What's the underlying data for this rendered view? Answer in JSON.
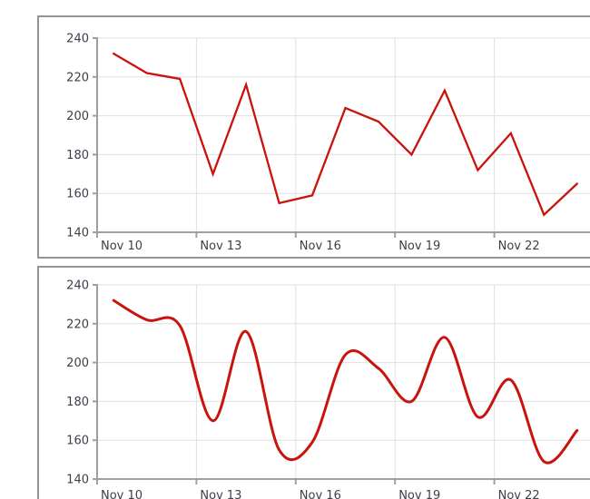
{
  "theme": {
    "background": "#ffffff",
    "panel_border": "#949494",
    "grid_color": "#e0e0e0",
    "axis_color": "#9f9f9f",
    "tick_color": "#9f9f9f",
    "label_color": "#3d4049",
    "line_color": "#c8140c"
  },
  "chart_data": [
    {
      "panel": "top",
      "type": "line",
      "interpolation": "linear",
      "title": "",
      "xlabel": "",
      "ylabel": "",
      "legend": "none",
      "grid": true,
      "x": [
        "Nov 10",
        "Nov 11",
        "Nov 12",
        "Nov 13",
        "Nov 14",
        "Nov 15",
        "Nov 16",
        "Nov 17",
        "Nov 18",
        "Nov 19",
        "Nov 20",
        "Nov 21",
        "Nov 22",
        "Nov 23",
        "Nov 24"
      ],
      "values": [
        232,
        222,
        219,
        170,
        216,
        155,
        159,
        204,
        197,
        180,
        213,
        172,
        191,
        149,
        165
      ],
      "x_axis_labels": [
        "Nov 10",
        "Nov 13",
        "Nov 16",
        "Nov 19",
        "Nov 22"
      ],
      "x_label_step": 3,
      "y_axis_labels": [
        "140",
        "160",
        "180",
        "200",
        "220",
        "240"
      ],
      "y_ticks": [
        140,
        160,
        180,
        200,
        220,
        240
      ],
      "ylim": [
        140,
        240
      ],
      "series_color": "#c8140c"
    },
    {
      "panel": "bottom",
      "type": "line",
      "interpolation": "spline",
      "title": "",
      "xlabel": "",
      "ylabel": "",
      "legend": "none",
      "grid": true,
      "x": [
        "Nov 10",
        "Nov 11",
        "Nov 12",
        "Nov 13",
        "Nov 14",
        "Nov 15",
        "Nov 16",
        "Nov 17",
        "Nov 18",
        "Nov 19",
        "Nov 20",
        "Nov 21",
        "Nov 22",
        "Nov 23",
        "Nov 24"
      ],
      "values": [
        232,
        222,
        219,
        170,
        216,
        155,
        159,
        204,
        197,
        180,
        213,
        172,
        191,
        149,
        165
      ],
      "x_axis_labels": [
        "Nov 10",
        "Nov 13",
        "Nov 16",
        "Nov 19",
        "Nov 22"
      ],
      "x_label_step": 3,
      "y_axis_labels": [
        "140",
        "160",
        "180",
        "200",
        "220",
        "240"
      ],
      "y_ticks": [
        140,
        160,
        180,
        200,
        220,
        240
      ],
      "ylim": [
        140,
        240
      ],
      "series_color": "#c8140c"
    }
  ]
}
